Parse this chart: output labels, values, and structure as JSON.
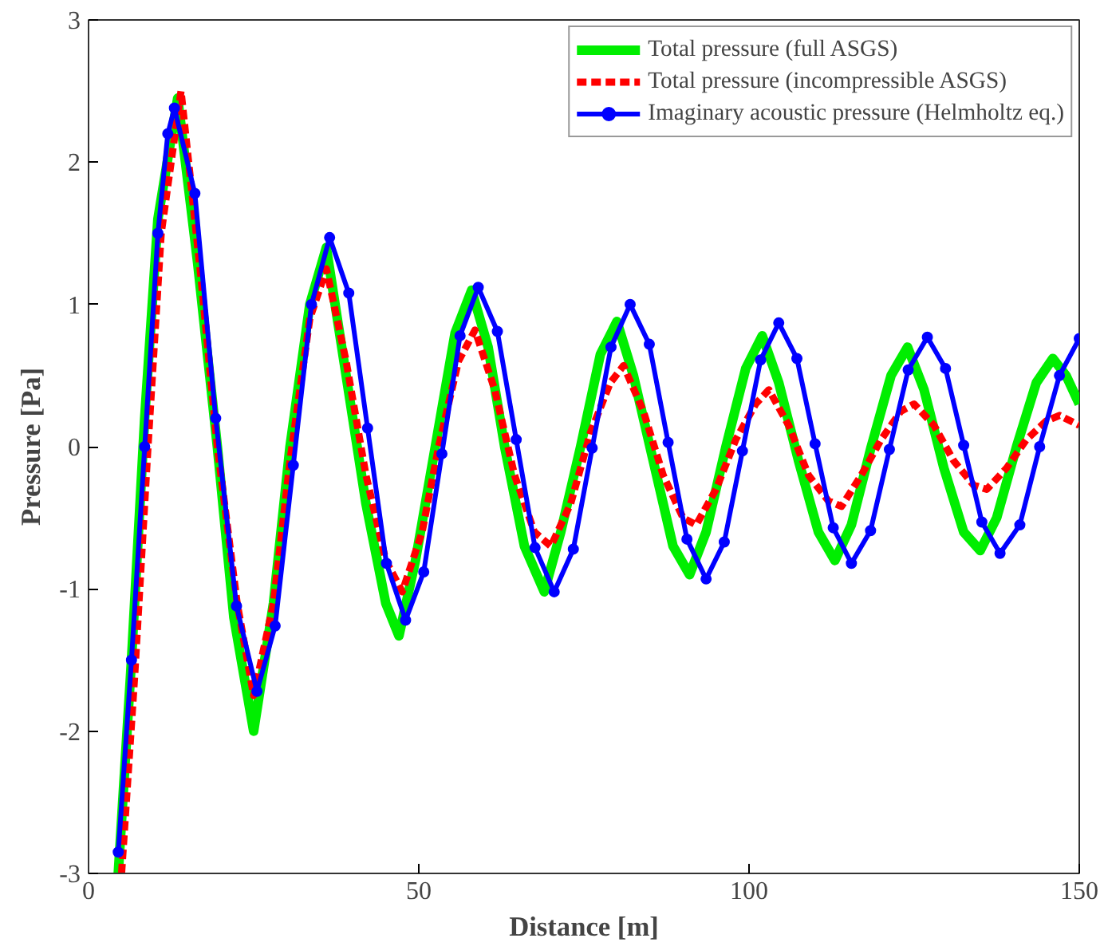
{
  "chart_data": {
    "type": "line",
    "xlabel": "Distance [m]",
    "ylabel": "Pressure [Pa]",
    "xlim": [
      0,
      150
    ],
    "ylim": [
      -3,
      3
    ],
    "xticks": [
      0,
      50,
      100,
      150
    ],
    "yticks": [
      -3,
      -2,
      -1,
      0,
      1,
      2,
      3
    ],
    "grid": false,
    "legend": "top right",
    "series": [
      {
        "name": "Total pressure (full ASGS)",
        "color": "#00ee00",
        "line_style": "solid",
        "marker": "none",
        "x": [
          4.5,
          6.5,
          8.5,
          10.5,
          13.5,
          16.5,
          19.5,
          22,
          25,
          28,
          30.5,
          33.5,
          36,
          39,
          42,
          45,
          47,
          49.5,
          52.5,
          55.5,
          58,
          60.5,
          63,
          66,
          69,
          71.5,
          74.5,
          77.5,
          80,
          82.5,
          85.5,
          88.5,
          91,
          93.5,
          96.5,
          99.5,
          102,
          104.5,
          107.5,
          110.5,
          113,
          115.5,
          118.5,
          121.5,
          124,
          126.5,
          129.5,
          132.5,
          135,
          137.5,
          140.5,
          143.5,
          146,
          148,
          150
        ],
        "values": [
          -3,
          -1.5,
          0.2,
          1.6,
          2.45,
          1.3,
          0.0,
          -1.2,
          -2.0,
          -1.1,
          0.0,
          1.0,
          1.4,
          0.5,
          -0.4,
          -1.1,
          -1.33,
          -0.8,
          0.0,
          0.8,
          1.1,
          0.7,
          0.0,
          -0.7,
          -1.02,
          -0.6,
          0.0,
          0.65,
          0.88,
          0.5,
          -0.1,
          -0.7,
          -0.9,
          -0.6,
          0.0,
          0.55,
          0.78,
          0.45,
          -0.1,
          -0.6,
          -0.8,
          -0.55,
          0.0,
          0.5,
          0.7,
          0.4,
          -0.15,
          -0.6,
          -0.73,
          -0.5,
          0.0,
          0.45,
          0.62,
          0.5,
          0.3
        ]
      },
      {
        "name": "Total pressure (incompressible ASGS)",
        "color": "#ff0000",
        "line_style": "dashed",
        "marker": "none",
        "x": [
          5,
          7,
          9,
          11,
          14,
          17,
          19.5,
          22.5,
          25,
          28,
          30.5,
          33.5,
          36,
          39,
          42,
          45,
          47.5,
          50.5,
          53,
          56,
          58.5,
          61.5,
          64.5,
          67.5,
          70,
          73,
          76,
          79,
          81,
          84,
          87,
          90,
          92,
          95,
          98,
          101,
          103,
          106,
          109,
          112,
          114,
          117,
          120,
          123,
          125,
          128,
          131,
          134,
          136,
          139,
          142,
          145,
          147,
          150
        ],
        "values": [
          -3,
          -1.6,
          0.0,
          1.5,
          2.5,
          1.2,
          0.0,
          -1.1,
          -1.75,
          -1.1,
          -0.1,
          0.9,
          1.25,
          0.6,
          -0.2,
          -0.8,
          -1.02,
          -0.6,
          0.0,
          0.6,
          0.82,
          0.4,
          -0.2,
          -0.6,
          -0.7,
          -0.4,
          0.1,
          0.45,
          0.57,
          0.25,
          -0.2,
          -0.5,
          -0.55,
          -0.3,
          0.05,
          0.3,
          0.4,
          0.15,
          -0.2,
          -0.38,
          -0.42,
          -0.2,
          0.05,
          0.25,
          0.3,
          0.15,
          -0.1,
          -0.27,
          -0.3,
          -0.15,
          0.05,
          0.18,
          0.22,
          0.15
        ]
      },
      {
        "name": "Imaginary acoustic pressure (Helmholtz eq.)",
        "color": "#0000ff",
        "line_style": "solid",
        "marker": "circle",
        "x": [
          4.5,
          6.5,
          8.5,
          10.5,
          12,
          13,
          16.1,
          19.25,
          22.4,
          25.5,
          28.25,
          31,
          33.75,
          36.5,
          39.4,
          42.25,
          45.1,
          48,
          50.75,
          53.5,
          56.25,
          59,
          61.9,
          64.75,
          67.6,
          70.5,
          73.4,
          76.25,
          79.1,
          82,
          84.9,
          87.75,
          90.6,
          93.5,
          96.25,
          99,
          101.75,
          104.5,
          107.25,
          110,
          112.75,
          115.5,
          118.4,
          121.25,
          124.1,
          127,
          129.75,
          132.5,
          135.25,
          138,
          141,
          144,
          147,
          150
        ],
        "values": [
          -2.85,
          -1.5,
          0.0,
          1.5,
          2.2,
          2.38,
          1.78,
          0.2,
          -1.12,
          -1.72,
          -1.26,
          -0.13,
          1.0,
          1.47,
          1.08,
          0.13,
          -0.82,
          -1.22,
          -0.88,
          -0.05,
          0.78,
          1.12,
          0.81,
          0.05,
          -0.71,
          -1.02,
          -0.72,
          -0.01,
          0.7,
          1.0,
          0.72,
          0.03,
          -0.65,
          -0.93,
          -0.67,
          -0.03,
          0.61,
          0.87,
          0.62,
          0.02,
          -0.57,
          -0.82,
          -0.59,
          -0.02,
          0.54,
          0.77,
          0.55,
          0.01,
          -0.53,
          -0.75,
          -0.55,
          0.0,
          0.5,
          0.76
        ]
      }
    ]
  }
}
